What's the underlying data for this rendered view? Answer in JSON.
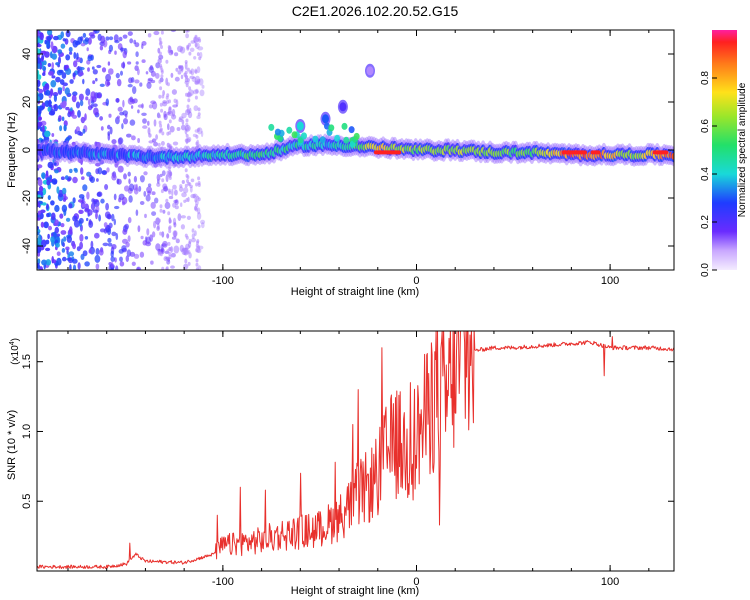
{
  "title": "C2E1.2026.102.20.52.G15",
  "colors": {
    "snr_line": "#e8302c",
    "ridge_low": "#2a3cff",
    "ridge_mid": "#19d9c0",
    "ridge_high": "#ff2020",
    "scatter": "#9b5cff"
  },
  "chart_data": [
    {
      "type": "heatmap",
      "xlabel": "Height of straight line (km)",
      "ylabel": "Frequency (Hz)",
      "xlim": [
        -196,
        133
      ],
      "ylim": [
        -50,
        50
      ],
      "xticks": [
        -100,
        0,
        100
      ],
      "yticks": [
        40,
        20,
        0,
        -20,
        -40
      ],
      "colorbar": {
        "label": "Normalized spectral amplitude",
        "range": [
          0,
          1
        ],
        "ticks": [
          "0.0",
          "0.2",
          "0.4",
          "0.6",
          "0.8"
        ],
        "tick_values": [
          0.0,
          0.2,
          0.4,
          0.6,
          0.8
        ]
      },
      "ridge": [
        {
          "x": -196,
          "freq": 0,
          "amp": 0.25
        },
        {
          "x": -160,
          "freq": -2,
          "amp": 0.3
        },
        {
          "x": -130,
          "freq": -3,
          "amp": 0.35
        },
        {
          "x": -100,
          "freq": -2,
          "amp": 0.45
        },
        {
          "x": -80,
          "freq": -2,
          "amp": 0.5
        },
        {
          "x": -60,
          "freq": 2,
          "amp": 0.45
        },
        {
          "x": -40,
          "freq": 2,
          "amp": 0.4
        },
        {
          "x": -20,
          "freq": 1,
          "amp": 0.75
        },
        {
          "x": 0,
          "freq": 0,
          "amp": 0.6
        },
        {
          "x": 20,
          "freq": 0,
          "amp": 0.65
        },
        {
          "x": 40,
          "freq": -1,
          "amp": 0.6
        },
        {
          "x": 60,
          "freq": -1,
          "amp": 0.55
        },
        {
          "x": 80,
          "freq": -2,
          "amp": 0.9
        },
        {
          "x": 95,
          "freq": -2,
          "amp": 0.85
        },
        {
          "x": 110,
          "freq": -2,
          "amp": 0.6
        },
        {
          "x": 130,
          "freq": -2,
          "amp": 0.85
        }
      ],
      "outliers": [
        {
          "x": -60,
          "freq": 10,
          "amp": 0.4
        },
        {
          "x": -47,
          "freq": 13,
          "amp": 0.3
        },
        {
          "x": -38,
          "freq": 18,
          "amp": 0.2
        },
        {
          "x": -24,
          "freq": 33,
          "amp": 0.1
        }
      ],
      "noise_region_km": [
        -196,
        -110
      ]
    },
    {
      "type": "line",
      "xlabel": "Height of straight line (km)",
      "ylabel": "SNR (10 * v/v)",
      "yscale_label": "(x10",
      "yscale_exp": "4",
      "xlim": [
        -196,
        133
      ],
      "ylim": [
        0,
        1.72
      ],
      "xticks": [
        -100,
        0,
        100
      ],
      "yticks": [
        "0.5",
        "1.0",
        "1.5"
      ],
      "ytick_values": [
        0.5,
        1.0,
        1.5
      ],
      "series": [
        {
          "name": "SNR",
          "x": [
            -196,
            -180,
            -160,
            -150,
            -145,
            -140,
            -120,
            -105,
            -100,
            -90,
            -80,
            -70,
            -60,
            -50,
            -40,
            -30,
            -25,
            -20,
            -15,
            -10,
            -5,
            0,
            5,
            10,
            15,
            20,
            25,
            30,
            40,
            50,
            60,
            70,
            80,
            90,
            95,
            100,
            110,
            120,
            133
          ],
          "y": [
            0.03,
            0.03,
            0.03,
            0.05,
            0.12,
            0.07,
            0.06,
            0.12,
            0.18,
            0.2,
            0.22,
            0.26,
            0.28,
            0.3,
            0.38,
            0.55,
            0.6,
            0.68,
            0.85,
            0.92,
            0.85,
            0.95,
            1.1,
            1.3,
            1.2,
            1.48,
            1.55,
            1.58,
            1.6,
            1.6,
            1.61,
            1.62,
            1.63,
            1.64,
            1.62,
            1.6,
            1.6,
            1.6,
            1.59
          ]
        }
      ],
      "spikes": [
        {
          "x": -148,
          "y": 0.2
        },
        {
          "x": -103,
          "y": 0.4
        },
        {
          "x": -91,
          "y": 0.6
        },
        {
          "x": -78,
          "y": 0.58
        },
        {
          "x": -60,
          "y": 0.7
        },
        {
          "x": -42,
          "y": 0.78
        },
        {
          "x": -33,
          "y": 1.05
        },
        {
          "x": -30,
          "y": 1.3
        },
        {
          "x": -18,
          "y": 1.6
        },
        {
          "x": -12,
          "y": 1.2
        },
        {
          "x": -3,
          "y": 1.35
        },
        {
          "x": 8,
          "y": 1.55
        },
        {
          "x": 10,
          "y": 1.72
        },
        {
          "x": 12,
          "y": 0.33
        },
        {
          "x": 97,
          "y": 1.4
        },
        {
          "x": 101,
          "y": 1.68
        }
      ]
    }
  ]
}
